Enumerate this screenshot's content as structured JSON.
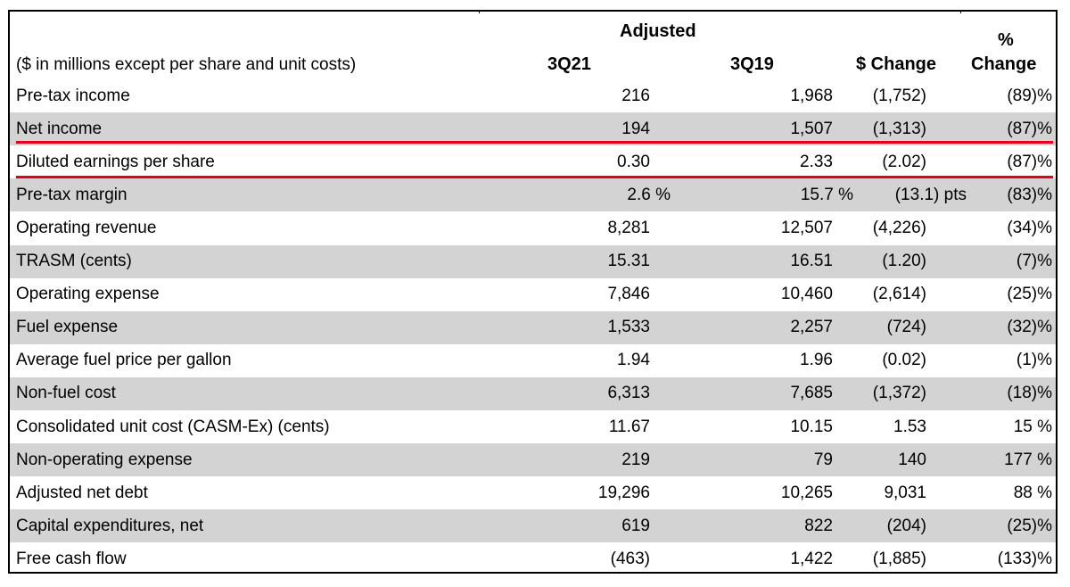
{
  "header": {
    "group_title": "Adjusted",
    "units_note": "($ in millions except per share and unit costs)",
    "col_3q21": "3Q21",
    "col_3q19": "3Q19",
    "col_change": "$ Change",
    "col_pct_line1": "%",
    "col_pct_line2": "Change"
  },
  "rows": [
    {
      "label": "Pre-tax income",
      "q21": "216",
      "q19": "1,968",
      "chg": "(1,752)",
      "pct": "(89)%"
    },
    {
      "label": "Net income",
      "q21": "194",
      "q19": "1,507",
      "chg": "(1,313)",
      "pct": "(87)%"
    },
    {
      "label": "Diluted earnings per share",
      "q21": "0.30",
      "q19": "2.33",
      "chg": "(2.02)",
      "pct": "(87)%"
    },
    {
      "label": "Pre-tax margin",
      "q21": "2.6 %",
      "q19": "15.7 %",
      "chg": "(13.1) pts",
      "pct": "(83)%"
    },
    {
      "label": "Operating revenue",
      "q21": "8,281",
      "q19": "12,507",
      "chg": "(4,226)",
      "pct": "(34)%"
    },
    {
      "label": "TRASM (cents)",
      "q21": "15.31",
      "q19": "16.51",
      "chg": "(1.20)",
      "pct": "(7)%"
    },
    {
      "label": "Operating expense",
      "q21": "7,846",
      "q19": "10,460",
      "chg": "(2,614)",
      "pct": "(25)%"
    },
    {
      "label": "Fuel expense",
      "q21": "1,533",
      "q19": "2,257",
      "chg": "(724)",
      "pct": "(32)%"
    },
    {
      "label": "Average fuel price per gallon",
      "q21": "1.94",
      "q19": "1.96",
      "chg": "(0.02)",
      "pct": "(1)%"
    },
    {
      "label": "Non-fuel cost",
      "q21": "6,313",
      "q19": "7,685",
      "chg": "(1,372)",
      "pct": "(18)%"
    },
    {
      "label": "Consolidated unit cost (CASM-Ex) (cents)",
      "q21": "11.67",
      "q19": "10.15",
      "chg": "1.53",
      "pct": "15 %"
    },
    {
      "label": "Non-operating expense",
      "q21": "219",
      "q19": "79",
      "chg": "140",
      "pct": "177 %"
    },
    {
      "label": "Adjusted net debt",
      "q21": "19,296",
      "q19": "10,265",
      "chg": "9,031",
      "pct": "88 %"
    },
    {
      "label": "Capital expenditures, net",
      "q21": "619",
      "q19": "822",
      "chg": "(204)",
      "pct": "(25)%"
    },
    {
      "label": "Free cash flow",
      "q21": "(463)",
      "q19": "1,422",
      "chg": "(1,885)",
      "pct": "(133)%"
    }
  ],
  "highlight_color": "#e3001b",
  "shade_color": "#d3d3d3"
}
